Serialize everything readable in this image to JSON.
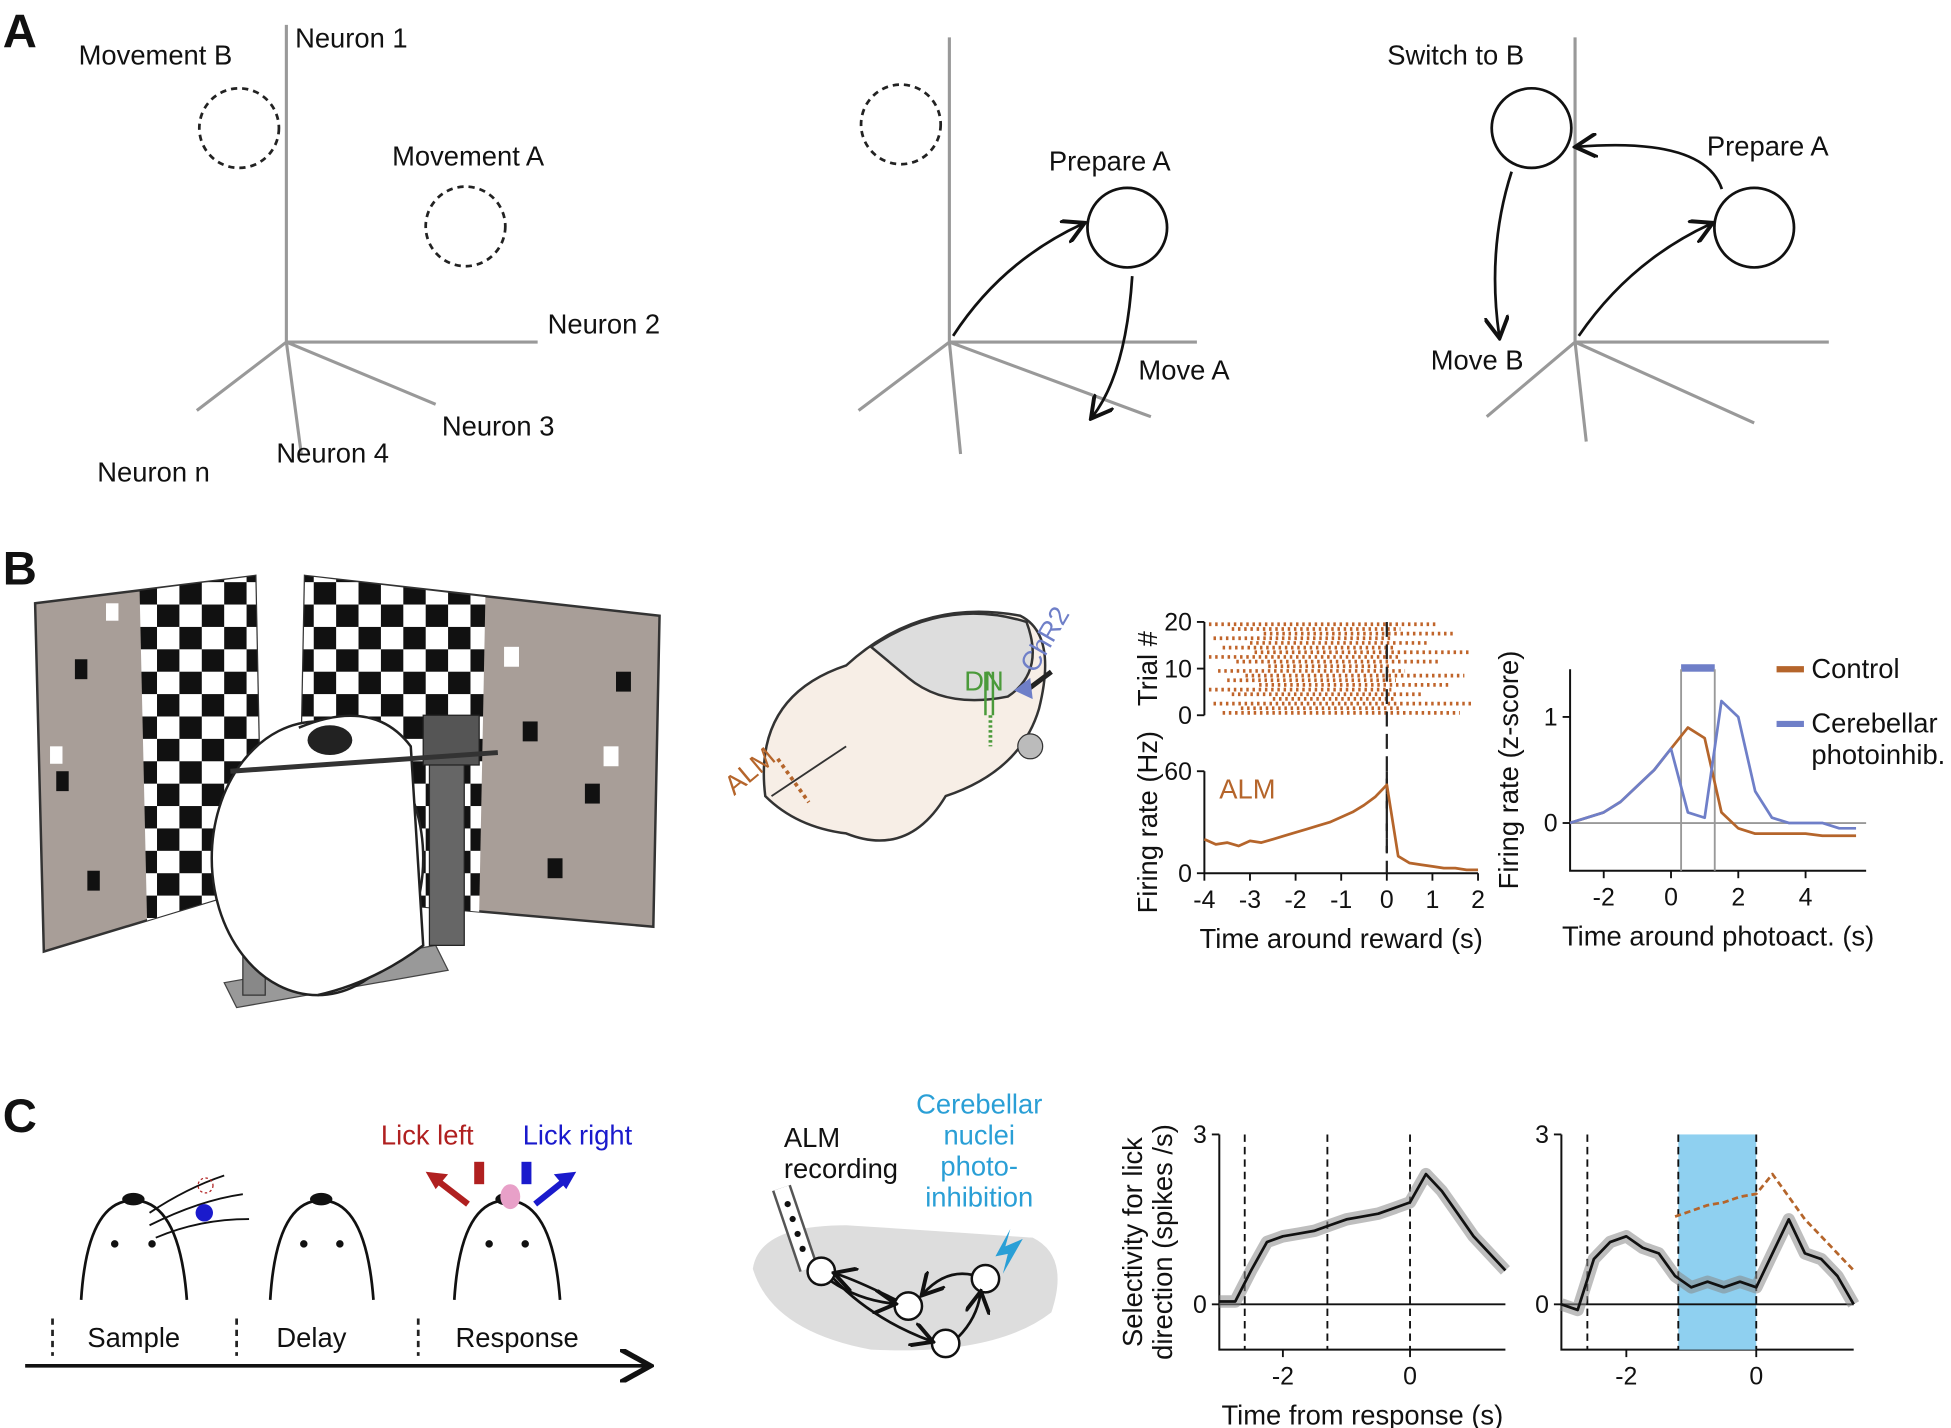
{
  "panel_a": {
    "label": "A",
    "movement_b": "Movement B",
    "neuron_1": "Neuron 1",
    "movement_a": "Movement A",
    "neuron_2": "Neuron 2",
    "neuron_3": "Neuron 3",
    "neuron_4": "Neuron 4",
    "neuron_n": "Neuron n",
    "prepare_a_1": "Prepare A",
    "move_a": "Move A",
    "switch_to_b": "Switch to B",
    "prepare_a_2": "Prepare A",
    "move_b": "Move B"
  },
  "panel_b": {
    "label": "B",
    "brain": {
      "alm": "ALM",
      "dn": "DN",
      "chr2": "ChR2"
    },
    "raster": {
      "type": "raster",
      "ylabel": "Trial #",
      "xlim": [
        -4,
        2
      ],
      "ylim": [
        0,
        20
      ],
      "yticks": [
        0,
        10,
        20
      ],
      "color": "#c0642a",
      "event_x": 0,
      "trials": [
        [
          -3.6,
          1.6
        ],
        [
          -3.2,
          0.3
        ],
        [
          -3.8,
          1.9
        ],
        [
          -2.5,
          0.2
        ],
        [
          -3.4,
          0.8
        ],
        [
          -3.9,
          0.1
        ],
        [
          -2.8,
          1.4
        ],
        [
          -3.5,
          0.2
        ],
        [
          -3.1,
          1.7
        ],
        [
          -3.7,
          0.4
        ],
        [
          -2.6,
          0.1
        ],
        [
          -3.3,
          1.2
        ],
        [
          -3.9,
          0.3
        ],
        [
          -2.9,
          1.8
        ],
        [
          -3.6,
          0.2
        ],
        [
          -3.0,
          0.9
        ],
        [
          -3.8,
          0.1
        ],
        [
          -2.7,
          1.5
        ],
        [
          -3.4,
          0.3
        ],
        [
          -3.9,
          1.1
        ]
      ]
    },
    "rate": {
      "type": "line",
      "title": "ALM",
      "ylabel": "Firing rate (Hz)",
      "xlabel": "Time around reward (s)",
      "xlim": [
        -4,
        2
      ],
      "ylim": [
        0,
        60
      ],
      "xticks": [
        -4,
        -3,
        -2,
        -1,
        0,
        1,
        2
      ],
      "yticks": [
        0,
        60
      ],
      "color": "#b5652b",
      "event_x": 0,
      "x": [
        -4,
        -3.75,
        -3.5,
        -3.25,
        -3,
        -2.75,
        -2.5,
        -2.25,
        -2,
        -1.75,
        -1.5,
        -1.25,
        -1,
        -0.75,
        -0.5,
        -0.25,
        0,
        0.25,
        0.5,
        0.75,
        1,
        1.25,
        1.5,
        1.75,
        2
      ],
      "values": [
        20,
        17,
        18,
        16,
        19,
        18,
        20,
        22,
        24,
        26,
        28,
        30,
        33,
        36,
        40,
        45,
        52,
        10,
        6,
        5,
        4,
        3,
        3,
        2,
        2
      ]
    },
    "zscore": {
      "type": "line",
      "ylabel": "Firing rate (z-score)",
      "xlabel": "Time around photoact. (s)",
      "xlim": [
        -3,
        5.8
      ],
      "ylim": [
        -0.45,
        1.45
      ],
      "xticks": [
        -2,
        0,
        2,
        4
      ],
      "yticks": [
        0,
        1
      ],
      "light": [
        0.3,
        1.3
      ],
      "light_color": "#6f7fc8",
      "x": [
        -3,
        -2.5,
        -2,
        -1.5,
        -1,
        -0.5,
        0,
        0.5,
        1,
        1.5,
        2,
        2.5,
        3,
        3.5,
        4,
        4.5,
        5,
        5.5
      ],
      "series": [
        {
          "name": "Control",
          "color": "#b5652b",
          "values": [
            0,
            0.05,
            0.1,
            0.2,
            0.35,
            0.5,
            0.7,
            0.9,
            0.8,
            0.1,
            -0.05,
            -0.1,
            -0.1,
            -0.1,
            -0.1,
            -0.12,
            -0.12,
            -0.12
          ]
        },
        {
          "name": "Cerebellar photoinhib.",
          "color": "#6f7fc8",
          "values": [
            0,
            0.05,
            0.1,
            0.2,
            0.35,
            0.5,
            0.7,
            0.1,
            0.05,
            1.15,
            1.0,
            0.3,
            0.05,
            0,
            0,
            0,
            -0.05,
            -0.05
          ]
        }
      ]
    }
  },
  "panel_c": {
    "label": "C",
    "lick_left": "Lick left",
    "lick_right": "Lick right",
    "sample": "Sample",
    "delay": "Delay",
    "response": "Response",
    "alm_recording": [
      "ALM",
      "recording"
    ],
    "photoinhibition": [
      "Cerebellar",
      "nuclei",
      "photo-",
      "inhibition"
    ],
    "selectivity": {
      "type": "line",
      "ylabel": [
        "Selectivity for lick",
        "direction (spikes /s)"
      ],
      "xlabel": "Time from response (s)",
      "xlim": [
        -3,
        1.5
      ],
      "ylim": [
        -0.8,
        3
      ],
      "xticks": [
        -2,
        0
      ],
      "yticks": [
        0,
        3
      ],
      "epochs": [
        -2.6,
        -1.3,
        0
      ],
      "color": "#111111",
      "x": [
        -3,
        -2.75,
        -2.5,
        -2.25,
        -2,
        -1.75,
        -1.5,
        -1.25,
        -1,
        -0.75,
        -0.5,
        -0.25,
        0,
        0.25,
        0.5,
        0.75,
        1,
        1.25,
        1.5
      ],
      "values": [
        0.05,
        0.05,
        0.6,
        1.1,
        1.2,
        1.25,
        1.3,
        1.4,
        1.5,
        1.55,
        1.6,
        1.7,
        1.8,
        2.3,
        2.0,
        1.6,
        1.2,
        0.9,
        0.6
      ]
    },
    "selectivity_inhibited": {
      "type": "line",
      "xlim": [
        -3,
        1.5
      ],
      "ylim": [
        -0.8,
        3
      ],
      "xticks": [
        -2,
        0
      ],
      "yticks": [
        0,
        3
      ],
      "epochs": [
        -2.6,
        -1.2,
        0
      ],
      "light": [
        -1.2,
        0
      ],
      "light_color": "#8fd0f0",
      "x": [
        -3,
        -2.75,
        -2.5,
        -2.25,
        -2,
        -1.75,
        -1.5,
        -1.25,
        -1,
        -0.75,
        -0.5,
        -0.25,
        0,
        0.25,
        0.5,
        0.75,
        1,
        1.25,
        1.5
      ],
      "series": [
        {
          "color": "#111111",
          "values": [
            0,
            -0.1,
            0.8,
            1.1,
            1.2,
            1.0,
            0.9,
            0.5,
            0.3,
            0.4,
            0.3,
            0.4,
            0.3,
            0.9,
            1.5,
            0.9,
            0.8,
            0.5,
            0.0
          ]
        },
        {
          "color": "#b5652b",
          "values": [
            null,
            null,
            null,
            null,
            null,
            null,
            null,
            1.55,
            1.65,
            1.75,
            1.8,
            1.9,
            1.95,
            2.3,
            1.9,
            1.5,
            1.2,
            0.9,
            0.6
          ]
        }
      ]
    }
  }
}
